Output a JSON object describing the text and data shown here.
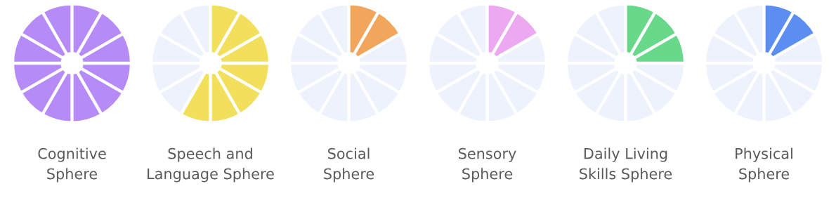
{
  "chart_data": [
    {
      "type": "donut",
      "title": "Cognitive\nSphere",
      "categories": [
        null,
        null,
        null,
        null,
        null,
        null,
        null,
        null,
        null,
        null,
        null,
        null
      ],
      "values": [
        8.33,
        8.33,
        8.33,
        8.33,
        8.33,
        8.33,
        8.33,
        8.33,
        8.33,
        8.33,
        8.33,
        8.33
      ],
      "colors": [
        "#b68af7",
        "#b68af7",
        "#b68af7",
        "#b68af7",
        "#b68af7",
        "#b68af7",
        "#b68af7",
        "#b68af7",
        "#b68af7",
        "#b68af7",
        "#b68af7",
        "#b68af7"
      ]
    },
    {
      "type": "donut",
      "title": "Speech and\nLanguage Sphere",
      "categories": [
        null,
        null,
        null,
        null,
        null,
        null,
        null,
        null,
        null,
        null,
        null,
        null
      ],
      "values": [
        8.33,
        8.33,
        8.33,
        8.33,
        8.33,
        8.33,
        8.33,
        8.33,
        8.33,
        8.33,
        8.33,
        8.33
      ],
      "colors": [
        "#f2e05c",
        "#f2e05c",
        "#f2e05c",
        "#f2e05c",
        "#f2e05c",
        "#f2e05c",
        "#f2e05c",
        "#eef2fd",
        "#eef2fd",
        "#eef2fd",
        "#eef2fd",
        "#eef2fd"
      ]
    },
    {
      "type": "donut",
      "title": "Social\nSphere",
      "categories": [
        null,
        null,
        null,
        null,
        null,
        null,
        null,
        null,
        null,
        null,
        null,
        null
      ],
      "values": [
        8.33,
        8.33,
        8.33,
        8.33,
        8.33,
        8.33,
        8.33,
        8.33,
        8.33,
        8.33,
        8.33,
        8.33
      ],
      "colors": [
        "#f2a65c",
        "#f2a65c",
        "#eef2fd",
        "#eef2fd",
        "#eef2fd",
        "#eef2fd",
        "#eef2fd",
        "#eef2fd",
        "#eef2fd",
        "#eef2fd",
        "#eef2fd",
        "#eef2fd"
      ]
    },
    {
      "type": "donut",
      "title": "Sensory\nSphere",
      "categories": [
        null,
        null,
        null,
        null,
        null,
        null,
        null,
        null,
        null,
        null,
        null,
        null
      ],
      "values": [
        8.33,
        8.33,
        8.33,
        8.33,
        8.33,
        8.33,
        8.33,
        8.33,
        8.33,
        8.33,
        8.33,
        8.33
      ],
      "colors": [
        "#eca9f1",
        "#eca9f1",
        "#eef2fd",
        "#eef2fd",
        "#eef2fd",
        "#eef2fd",
        "#eef2fd",
        "#eef2fd",
        "#eef2fd",
        "#eef2fd",
        "#eef2fd",
        "#eef2fd"
      ]
    },
    {
      "type": "donut",
      "title": "Daily Living\nSkills Sphere",
      "categories": [
        null,
        null,
        null,
        null,
        null,
        null,
        null,
        null,
        null,
        null,
        null,
        null
      ],
      "values": [
        8.33,
        8.33,
        8.33,
        8.33,
        8.33,
        8.33,
        8.33,
        8.33,
        8.33,
        8.33,
        8.33,
        8.33
      ],
      "colors": [
        "#68d98a",
        "#68d98a",
        "#68d98a",
        "#eef2fd",
        "#eef2fd",
        "#eef2fd",
        "#eef2fd",
        "#eef2fd",
        "#eef2fd",
        "#eef2fd",
        "#eef2fd",
        "#eef2fd"
      ]
    },
    {
      "type": "donut",
      "title": "Physical\nSphere",
      "categories": [
        null,
        null,
        null,
        null,
        null,
        null,
        null,
        null,
        null,
        null,
        null,
        null
      ],
      "values": [
        8.33,
        8.33,
        8.33,
        8.33,
        8.33,
        8.33,
        8.33,
        8.33,
        8.33,
        8.33,
        8.33,
        8.33
      ],
      "colors": [
        "#5b8ef0",
        "#5b8ef0",
        "#eef2fd",
        "#eef2fd",
        "#eef2fd",
        "#eef2fd",
        "#eef2fd",
        "#eef2fd",
        "#eef2fd",
        "#eef2fd",
        "#eef2fd",
        "#eef2fd"
      ]
    }
  ]
}
